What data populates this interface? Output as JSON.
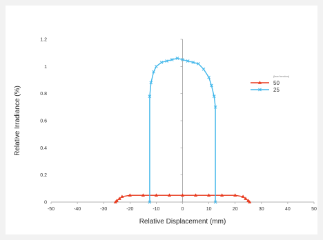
{
  "chart_data": {
    "type": "line",
    "title": "",
    "xlabel": "Relative Displacement (mm)",
    "ylabel": "Relative Irradiance (%)",
    "xlim": [
      -50,
      50
    ],
    "ylim": [
      0,
      1.2
    ],
    "xticks": [
      -50,
      -40,
      -30,
      -20,
      -10,
      0,
      10,
      20,
      30,
      40,
      50
    ],
    "yticks": [
      0,
      0.2,
      0.4,
      0.6,
      0.8,
      1,
      1.2
    ],
    "ytick_labels": [
      "0",
      "0.2",
      "0.4",
      "0.6",
      "0.8",
      "1",
      "1.2"
    ],
    "grid": false,
    "legend": {
      "title": "(box funcion)",
      "position": "right"
    },
    "series": [
      {
        "name": "50",
        "color": "#e8391d",
        "marker": "triangle",
        "x": [
          -25.5,
          -25,
          -24,
          -23,
          -20,
          -15,
          -10,
          -5,
          0,
          5,
          10,
          15,
          20,
          23,
          24,
          25,
          25.5
        ],
        "y": [
          0,
          0.01,
          0.025,
          0.04,
          0.05,
          0.05,
          0.05,
          0.05,
          0.05,
          0.05,
          0.05,
          0.05,
          0.05,
          0.04,
          0.025,
          0.01,
          0
        ]
      },
      {
        "name": "25",
        "color": "#3fb6ea",
        "marker": "x",
        "x": [
          -12.5,
          -12.5,
          -12,
          -11,
          -10,
          -8,
          -6,
          -4,
          -2,
          0,
          2,
          4,
          6,
          8,
          10,
          11,
          12,
          12.5,
          12.5
        ],
        "y": [
          0,
          0.78,
          0.88,
          0.96,
          1.0,
          1.03,
          1.04,
          1.05,
          1.06,
          1.05,
          1.04,
          1.03,
          1.02,
          0.98,
          0.92,
          0.86,
          0.78,
          0.7,
          0
        ]
      }
    ]
  }
}
